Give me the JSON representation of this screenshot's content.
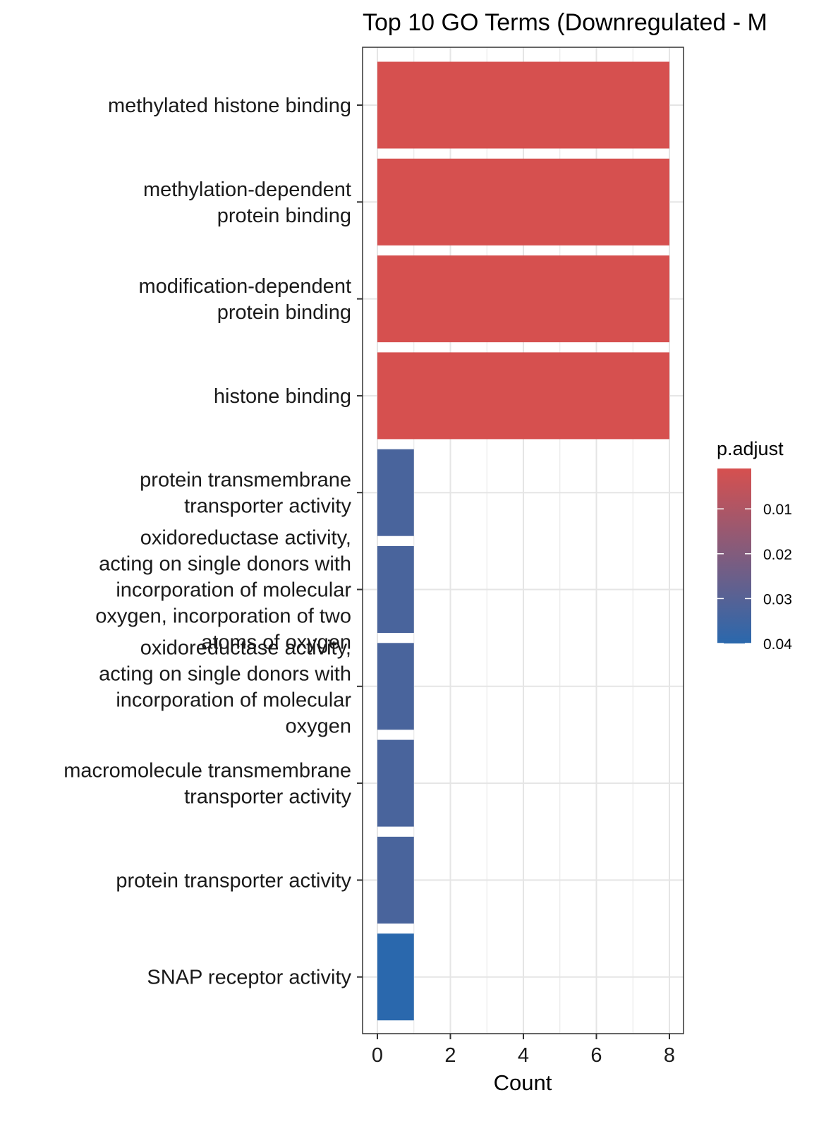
{
  "chart_data": {
    "type": "bar",
    "orientation": "horizontal",
    "title": "Top 10 GO Terms (Downregulated - M",
    "xlabel": "Count",
    "ylabel": "",
    "xlim": [
      0,
      8
    ],
    "xticks": [
      "0",
      "2",
      "4",
      "6",
      "8"
    ],
    "grid": true,
    "categories": [
      [
        "methylated histone binding"
      ],
      [
        "methylation-dependent",
        "protein binding"
      ],
      [
        "modification-dependent",
        "protein binding"
      ],
      [
        "histone binding"
      ],
      [
        "protein transmembrane",
        "transporter activity"
      ],
      [
        "oxidoreductase activity,",
        "acting on single donors with",
        "incorporation of molecular",
        "oxygen, incorporation of two",
        "atoms of oxygen"
      ],
      [
        "oxidoreductase activity,",
        "acting on single donors with",
        "incorporation of molecular",
        "oxygen"
      ],
      [
        "macromolecule transmembrane",
        "transporter activity"
      ],
      [
        "protein transporter activity"
      ],
      [
        "SNAP receptor activity"
      ]
    ],
    "values": [
      8,
      8,
      8,
      8,
      1,
      1,
      1,
      1,
      1,
      1
    ],
    "p_adjust": [
      0.001,
      0.001,
      0.001,
      0.001,
      0.033,
      0.033,
      0.033,
      0.033,
      0.033,
      0.04
    ],
    "legend": {
      "title": "p.adjust",
      "placement": "right",
      "labels": [
        "0.01",
        "0.02",
        "0.03",
        "0.04"
      ],
      "values": [
        0.01,
        0.02,
        0.03,
        0.04
      ],
      "range": [
        0.001,
        0.04
      ],
      "low_color": "#d6504f",
      "high_color": "#2a68ad"
    },
    "colors": {
      "high_significance": "#d6504f",
      "low_significance": "#2a68ad",
      "grid": "#e5e5e5",
      "panel_border": "#333333"
    }
  }
}
